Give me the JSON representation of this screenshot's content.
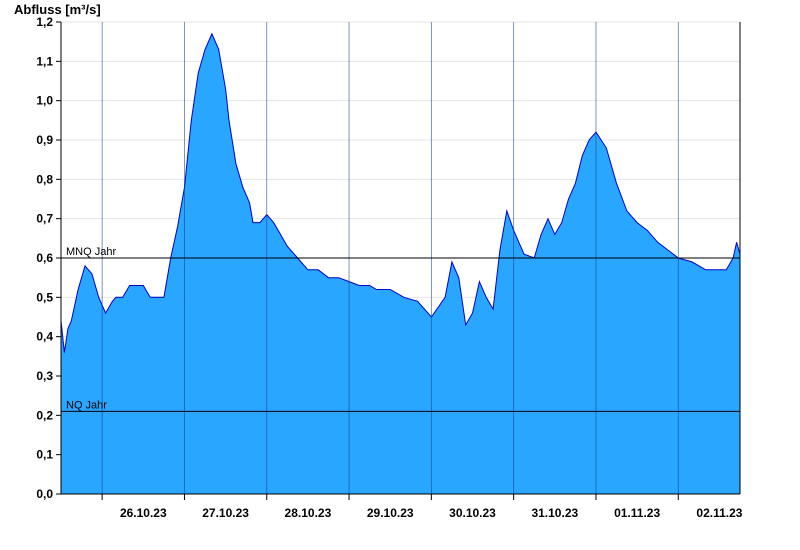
{
  "chart_data": {
    "type": "area",
    "ylabel": "Abfluss [m³/s]",
    "ylim": [
      0,
      1.2
    ],
    "xlim": [
      "25.10.23 12:00",
      "02.11.23 18:00"
    ],
    "y_ticks": [
      "0,0",
      "0,1",
      "0,2",
      "0,3",
      "0,4",
      "0,5",
      "0,6",
      "0,7",
      "0,8",
      "0,9",
      "1,0",
      "1,1",
      "1,2"
    ],
    "x_ticks": [
      "26.10.23",
      "27.10.23",
      "28.10.23",
      "29.10.23",
      "30.10.23",
      "31.10.23",
      "01.11.23",
      "02.11.23"
    ],
    "grid": true,
    "fill_color": "#29a6ff",
    "line_color": "#0000cc",
    "reference_lines": [
      {
        "label": "MNQ Jahr",
        "value": 0.6
      },
      {
        "label": "NQ Jahr",
        "value": 0.21
      }
    ],
    "series": [
      {
        "x": [
          "25.10.23 12:00",
          "25.10.23 13:00",
          "25.10.23 14:00",
          "25.10.23 15:00",
          "25.10.23 17:00",
          "25.10.23 19:00",
          "25.10.23 21:00",
          "25.10.23 23:00",
          "26.10.23 01:00",
          "26.10.23 03:00",
          "26.10.23 04:00",
          "26.10.23 06:00",
          "26.10.23 08:00",
          "26.10.23 10:00",
          "26.10.23 12:00",
          "26.10.23 14:00",
          "26.10.23 16:00",
          "26.10.23 18:00",
          "26.10.23 20:00",
          "26.10.23 22:00",
          "27.10.23 00:00",
          "27.10.23 02:00",
          "27.10.23 04:00",
          "27.10.23 06:00",
          "27.10.23 08:00",
          "27.10.23 10:00",
          "27.10.23 12:00",
          "27.10.23 13:00",
          "27.10.23 15:00",
          "27.10.23 17:00",
          "27.10.23 18:00",
          "27.10.23 19:00",
          "27.10.23 20:00",
          "27.10.23 22:00",
          "28.10.23 00:00",
          "28.10.23 02:00",
          "28.10.23 04:00",
          "28.10.23 06:00",
          "28.10.23 09:00",
          "28.10.23 12:00",
          "28.10.23 15:00",
          "28.10.23 18:00",
          "28.10.23 21:00",
          "29.10.23 00:00",
          "29.10.23 03:00",
          "29.10.23 06:00",
          "29.10.23 08:00",
          "29.10.23 12:00",
          "29.10.23 16:00",
          "29.10.23 20:00",
          "30.10.23 00:00",
          "30.10.23 04:00",
          "30.10.23 06:00",
          "30.10.23 08:00",
          "30.10.23 10:00",
          "30.10.23 12:00",
          "30.10.23 14:00",
          "30.10.23 16:00",
          "30.10.23 18:00",
          "30.10.23 20:00",
          "30.10.23 22:00",
          "31.10.23 00:00",
          "31.10.23 03:00",
          "31.10.23 06:00",
          "31.10.23 08:00",
          "31.10.23 10:00",
          "31.10.23 12:00",
          "31.10.23 14:00",
          "31.10.23 16:00",
          "31.10.23 18:00",
          "31.10.23 20:00",
          "31.10.23 22:00",
          "01.11.23 00:00",
          "01.11.23 03:00",
          "01.11.23 06:00",
          "01.11.23 09:00",
          "01.11.23 12:00",
          "01.11.23 15:00",
          "01.11.23 18:00",
          "01.11.23 21:00",
          "02.11.23 00:00",
          "02.11.23 04:00",
          "02.11.23 08:00",
          "02.11.23 12:00",
          "02.11.23 14:00",
          "02.11.23 16:00",
          "02.11.23 17:00",
          "02.11.23 18:00"
        ],
        "values": [
          0.44,
          0.36,
          0.42,
          0.44,
          0.52,
          0.58,
          0.56,
          0.5,
          0.46,
          0.49,
          0.5,
          0.5,
          0.53,
          0.53,
          0.53,
          0.5,
          0.5,
          0.5,
          0.6,
          0.68,
          0.78,
          0.95,
          1.07,
          1.13,
          1.17,
          1.13,
          1.03,
          0.95,
          0.84,
          0.78,
          0.76,
          0.74,
          0.69,
          0.69,
          0.71,
          0.69,
          0.66,
          0.63,
          0.6,
          0.57,
          0.57,
          0.55,
          0.55,
          0.54,
          0.53,
          0.53,
          0.52,
          0.52,
          0.5,
          0.49,
          0.45,
          0.5,
          0.59,
          0.55,
          0.43,
          0.46,
          0.54,
          0.5,
          0.47,
          0.62,
          0.72,
          0.67,
          0.61,
          0.6,
          0.66,
          0.7,
          0.66,
          0.69,
          0.75,
          0.79,
          0.86,
          0.9,
          0.92,
          0.88,
          0.79,
          0.72,
          0.69,
          0.67,
          0.64,
          0.62,
          0.6,
          0.59,
          0.57,
          0.57,
          0.57,
          0.6,
          0.64,
          0.61
        ]
      }
    ]
  }
}
